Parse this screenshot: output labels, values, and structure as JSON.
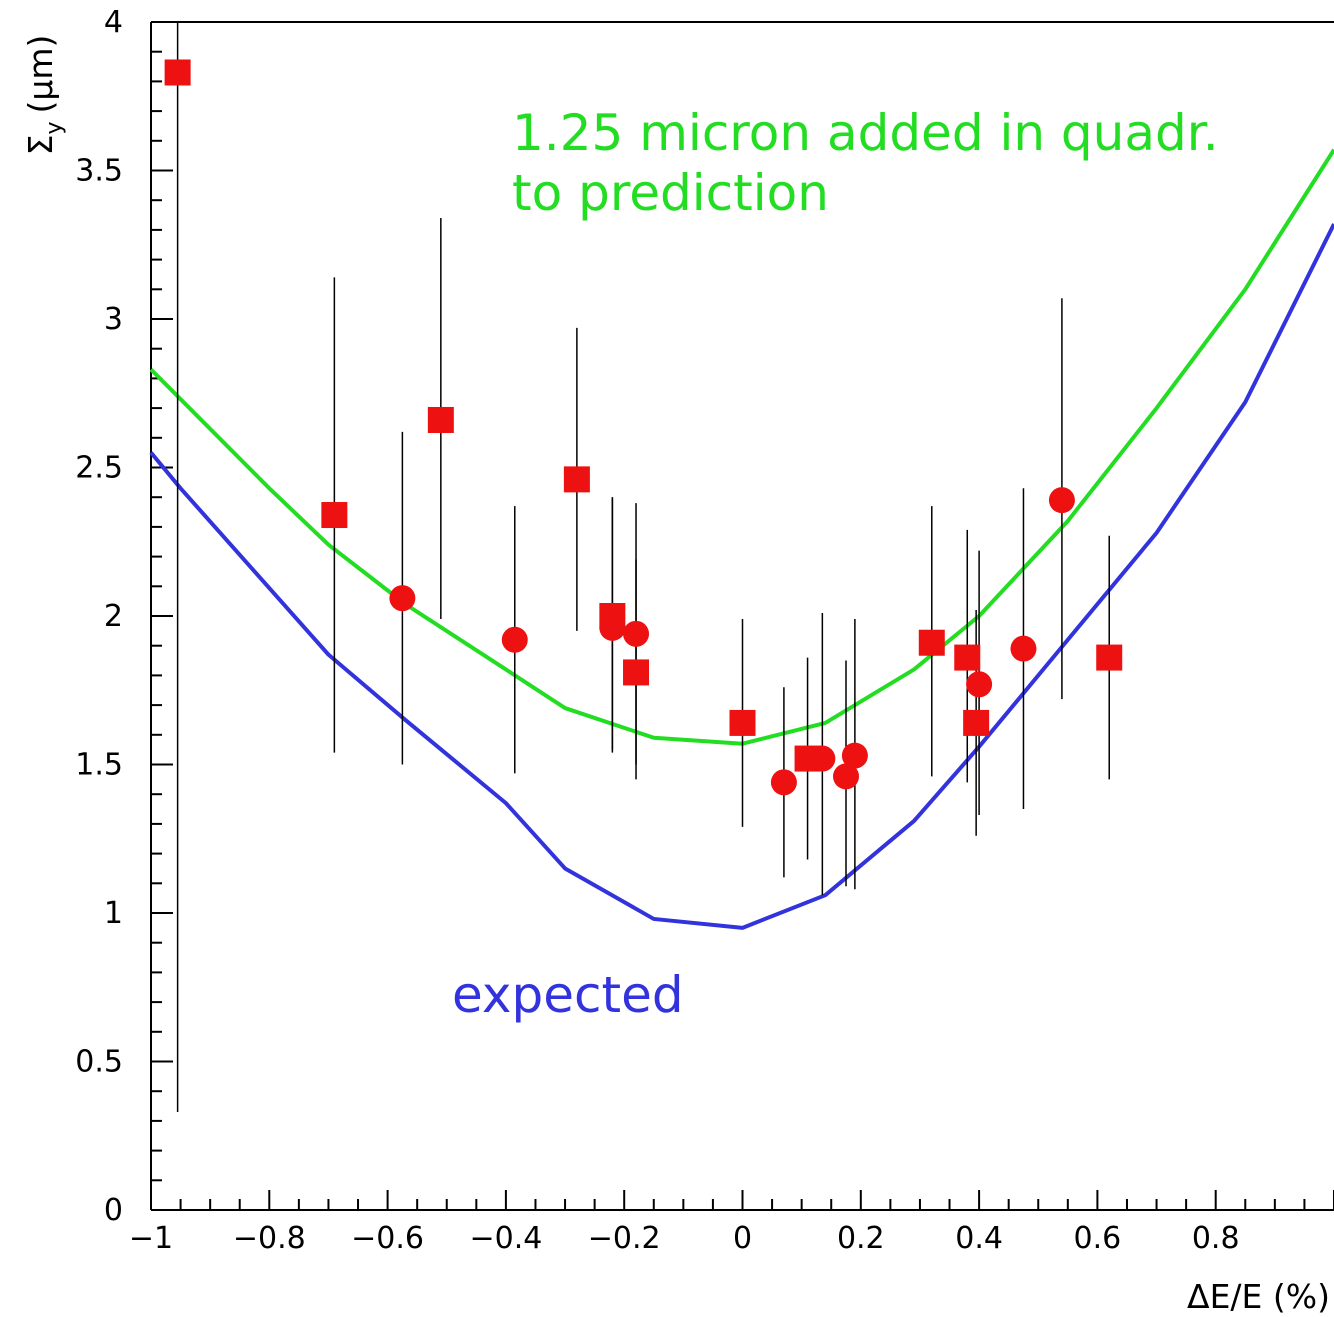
{
  "chart_data": {
    "type": "scatter",
    "xlabel": "ΔE/E (%)",
    "ylabel": "Σy (μm)",
    "ylabel_main": "Σ",
    "ylabel_sub": "y",
    "ylabel_unit": "(μm)",
    "xlim": [
      -1,
      1
    ],
    "ylim": [
      0,
      4
    ],
    "grid": false,
    "x_ticks": [
      -1,
      -0.8,
      -0.6,
      -0.4,
      -0.2,
      0,
      0.2,
      0.4,
      0.6,
      0.8
    ],
    "x_tick_labels": [
      "−1",
      "−0.8",
      "−0.6",
      "−0.4",
      "−0.2",
      "0",
      "0.2",
      "0.4",
      "0.6",
      "0.8"
    ],
    "y_ticks": [
      0,
      0.5,
      1,
      1.5,
      2,
      2.5,
      3,
      3.5,
      4
    ],
    "y_tick_labels": [
      "0",
      "0.5",
      "1",
      "1.5",
      "2",
      "2.5",
      "3",
      "3.5",
      "4"
    ],
    "annotations": [
      {
        "lines": [
          "1.25 micron added in quadr.",
          "to prediction"
        ],
        "color": "#22dd22"
      },
      {
        "lines": [
          "expected"
        ],
        "color": "#3333dd"
      }
    ],
    "series": [
      {
        "kind": "line",
        "color": "#3333dd",
        "x": [
          -1.0,
          -0.95,
          -0.7,
          -0.57,
          -0.4,
          -0.3,
          -0.15,
          0.0,
          0.14,
          0.29,
          0.4,
          0.55,
          0.7,
          0.85,
          1.0
        ],
        "y": [
          2.55,
          2.43,
          1.87,
          1.65,
          1.37,
          1.15,
          0.98,
          0.95,
          1.06,
          1.31,
          1.56,
          1.92,
          2.28,
          2.72,
          3.32
        ]
      },
      {
        "kind": "line",
        "color": "#22dd22",
        "x": [
          -1.0,
          -0.95,
          -0.8,
          -0.7,
          -0.57,
          -0.4,
          -0.3,
          -0.15,
          0.0,
          0.14,
          0.29,
          0.4,
          0.55,
          0.7,
          0.85,
          1.0
        ],
        "y": [
          2.83,
          2.73,
          2.43,
          2.24,
          2.04,
          1.82,
          1.69,
          1.59,
          1.57,
          1.64,
          1.82,
          2.0,
          2.32,
          2.7,
          3.1,
          3.57
        ]
      },
      {
        "kind": "points",
        "marker": "square",
        "color": "#ee1111",
        "points": [
          {
            "x": -0.955,
            "y": 3.83,
            "ylo": 0.33,
            "yhi": 4.0
          },
          {
            "x": -0.69,
            "y": 2.34,
            "ylo": 1.54,
            "yhi": 3.14
          },
          {
            "x": -0.51,
            "y": 2.66,
            "ylo": 1.99,
            "yhi": 3.34
          },
          {
            "x": -0.28,
            "y": 2.46,
            "ylo": 1.95,
            "yhi": 2.97
          },
          {
            "x": -0.22,
            "y": 2.0,
            "ylo": 1.54,
            "yhi": 2.4
          },
          {
            "x": -0.18,
            "y": 1.81,
            "ylo": 1.45,
            "yhi": 2.19
          },
          {
            "x": 0.0,
            "y": 1.64,
            "ylo": 1.29,
            "yhi": 1.99
          },
          {
            "x": 0.11,
            "y": 1.52,
            "ylo": 1.18,
            "yhi": 1.86
          },
          {
            "x": 0.32,
            "y": 1.91,
            "ylo": 1.46,
            "yhi": 2.37
          },
          {
            "x": 0.38,
            "y": 1.86,
            "ylo": 1.44,
            "yhi": 2.29
          },
          {
            "x": 0.395,
            "y": 1.64,
            "ylo": 1.26,
            "yhi": 2.02
          },
          {
            "x": 0.62,
            "y": 1.86,
            "ylo": 1.45,
            "yhi": 2.27
          }
        ]
      },
      {
        "kind": "points",
        "marker": "circle",
        "color": "#ee1111",
        "points": [
          {
            "x": -0.575,
            "y": 2.06,
            "ylo": 1.5,
            "yhi": 2.62
          },
          {
            "x": -0.385,
            "y": 1.92,
            "ylo": 1.47,
            "yhi": 2.37
          },
          {
            "x": -0.22,
            "y": 1.96,
            "ylo": 1.55,
            "yhi": 2.4
          },
          {
            "x": -0.18,
            "y": 1.94,
            "ylo": 1.5,
            "yhi": 2.38
          },
          {
            "x": 0.07,
            "y": 1.44,
            "ylo": 1.12,
            "yhi": 1.76
          },
          {
            "x": 0.135,
            "y": 1.52,
            "ylo": 1.06,
            "yhi": 2.01
          },
          {
            "x": 0.175,
            "y": 1.46,
            "ylo": 1.09,
            "yhi": 1.85
          },
          {
            "x": 0.19,
            "y": 1.53,
            "ylo": 1.08,
            "yhi": 1.99
          },
          {
            "x": 0.4,
            "y": 1.77,
            "ylo": 1.33,
            "yhi": 2.22
          },
          {
            "x": 0.475,
            "y": 1.89,
            "ylo": 1.35,
            "yhi": 2.43
          },
          {
            "x": 0.54,
            "y": 2.39,
            "ylo": 1.72,
            "yhi": 3.07
          }
        ]
      }
    ]
  }
}
